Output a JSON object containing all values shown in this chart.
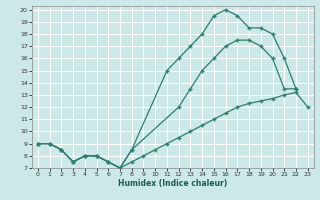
{
  "xlabel": "Humidex (Indice chaleur)",
  "background_color": "#cce8e8",
  "grid_color": "#b8d8d8",
  "line_color": "#2e7d6e",
  "xlim": [
    -0.5,
    23.5
  ],
  "ylim": [
    7,
    20.3
  ],
  "xticks": [
    0,
    1,
    2,
    3,
    4,
    5,
    6,
    7,
    8,
    9,
    10,
    11,
    12,
    13,
    14,
    15,
    16,
    17,
    18,
    19,
    20,
    21,
    22,
    23
  ],
  "yticks": [
    7,
    8,
    9,
    10,
    11,
    12,
    13,
    14,
    15,
    16,
    17,
    18,
    19,
    20
  ],
  "curve_steep_x": [
    0,
    1,
    2,
    3,
    4,
    5,
    6,
    7,
    8,
    11,
    12,
    13,
    14,
    15,
    16,
    17,
    18,
    19,
    20,
    21,
    22
  ],
  "curve_steep_y": [
    9,
    9,
    8.5,
    7.5,
    8,
    8,
    7.5,
    7,
    8.5,
    15,
    16,
    17,
    18,
    19.5,
    20,
    19.5,
    18.5,
    18.5,
    18,
    16,
    13.5
  ],
  "curve_mid_x": [
    0,
    1,
    2,
    3,
    4,
    5,
    6,
    7,
    8,
    12,
    13,
    14,
    15,
    16,
    17,
    18,
    19,
    20,
    21,
    22
  ],
  "curve_mid_y": [
    9,
    9,
    8.5,
    7.5,
    8,
    8,
    7.5,
    7,
    8.5,
    12,
    13.5,
    15,
    16,
    17,
    17.5,
    17.5,
    17,
    16,
    13.5,
    13.5
  ],
  "curve_low_x": [
    0,
    1,
    2,
    3,
    4,
    5,
    6,
    7,
    8,
    9,
    10,
    11,
    12,
    13,
    14,
    15,
    16,
    17,
    18,
    19,
    20,
    21,
    22,
    23
  ],
  "curve_low_y": [
    9,
    9,
    8.5,
    7.5,
    8,
    8,
    7.5,
    7,
    7.5,
    8,
    8.5,
    9,
    9.5,
    10,
    10.5,
    11,
    11.5,
    12,
    12.3,
    12.5,
    12.7,
    13,
    13.2,
    12
  ]
}
